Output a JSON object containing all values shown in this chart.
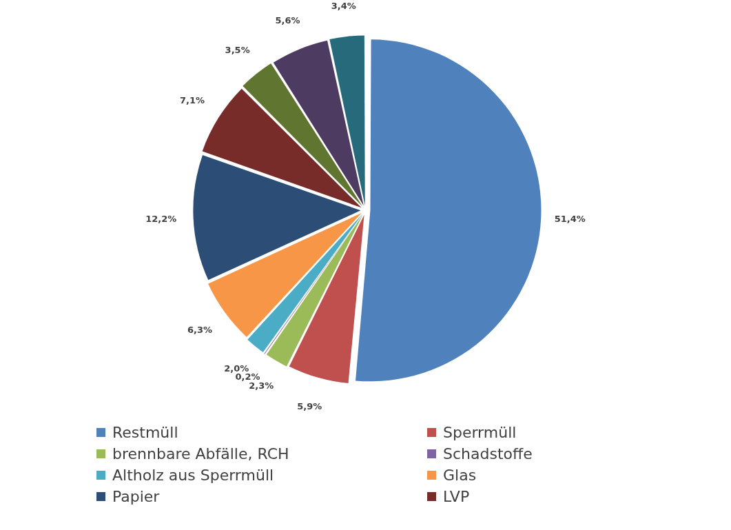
{
  "chart_data": {
    "type": "pie",
    "categories": [
      "Restmüll",
      "Sperrmüll",
      "brennbare Abfälle, RCH",
      "Schadstoffe",
      "Altholz aus Sperrmüll",
      "Glas",
      "Papier",
      "LVP",
      null,
      null,
      null
    ],
    "values": [
      51.4,
      5.9,
      2.3,
      0.2,
      2.0,
      6.3,
      12.2,
      7.1,
      3.5,
      5.6,
      3.4
    ],
    "value_labels": [
      "51,4%",
      "5,9%",
      "2,3%",
      "0,2%",
      "2,0%",
      "6,3%",
      "12,2%",
      "7,1%",
      "3,5%",
      "5,6%",
      "3,4%"
    ],
    "colors": [
      "#4f81bd",
      "#c0504d",
      "#9bbb59",
      "#8064a2",
      "#4bacc6",
      "#f79646",
      "#2c4d75",
      "#772c2a",
      "#5f7530",
      "#4d3b62",
      "#276a7c"
    ],
    "legend": "bottom"
  }
}
